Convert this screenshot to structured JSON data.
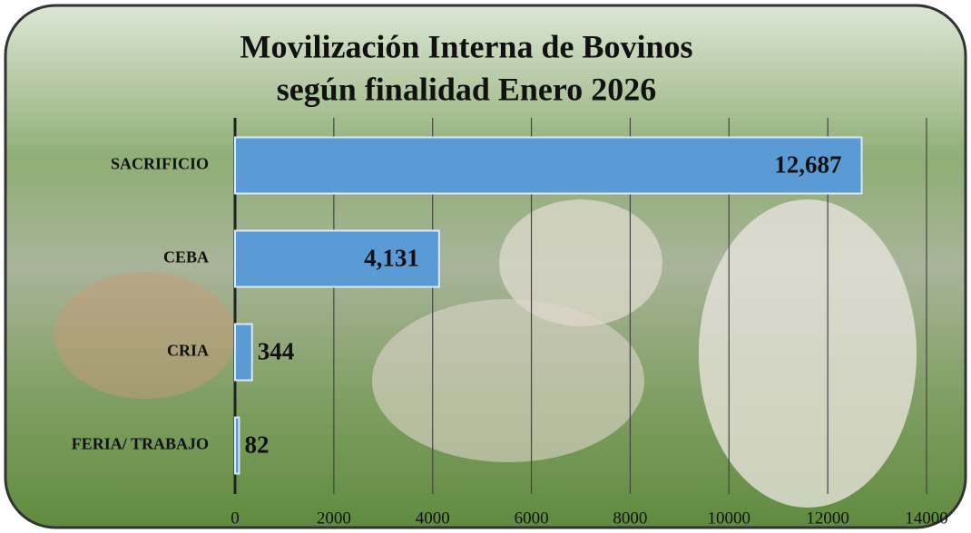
{
  "chart_data": {
    "type": "barh",
    "title": [
      "Movilización Interna de Bovinos",
      "según finalidad   Enero 2026"
    ],
    "categories": [
      "SACRIFICIO",
      "CEBA",
      "CRIA",
      "FERIA/ TRABAJO"
    ],
    "values": [
      12687,
      4131,
      344,
      82
    ],
    "value_labels": [
      "12,687",
      "4,131",
      "344",
      "82"
    ],
    "color": "#5b9bd5",
    "xlim": [
      0,
      14000
    ],
    "xticks": [
      0,
      2000,
      4000,
      6000,
      8000,
      10000,
      12000,
      14000
    ],
    "grid": true
  }
}
